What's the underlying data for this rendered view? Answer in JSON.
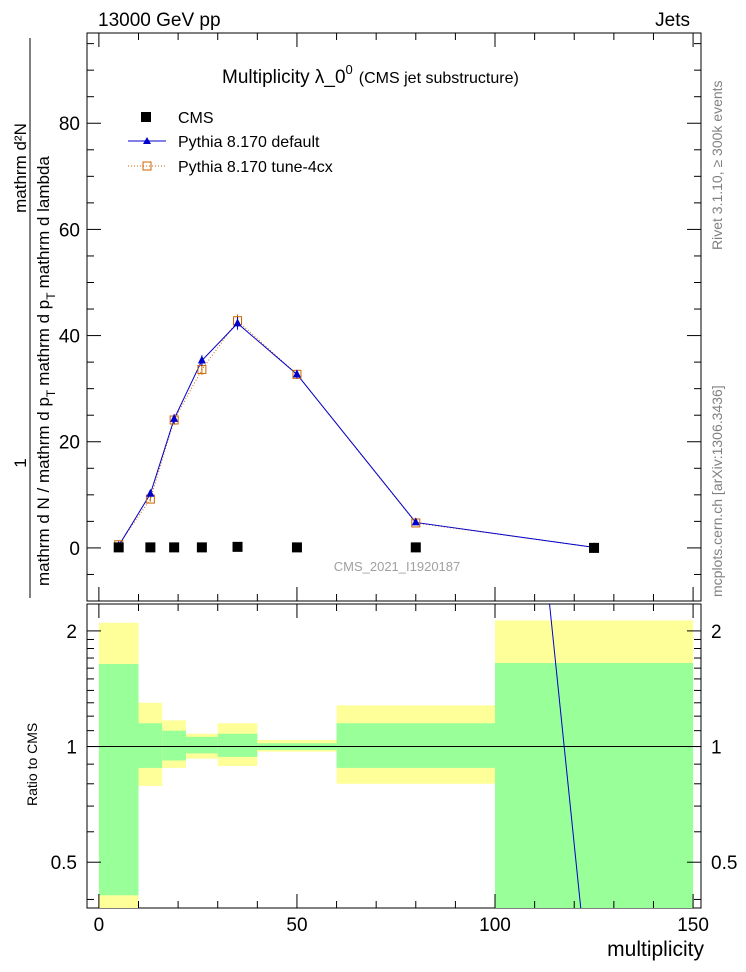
{
  "header": {
    "left": "13000 GeV pp",
    "right": "Jets"
  },
  "title": {
    "main": "Multiplicity  λ_0",
    "sup": "0",
    "sub": "(CMS jet substructure)"
  },
  "side_labels": {
    "rivet": "Rivet 3.1.10, ≥ 300k events",
    "mcplots": "mcplots.cern.ch [arXiv:1306.3436]"
  },
  "watermark": "CMS_2021_I1920187",
  "ylabel_main": {
    "numerator": "1",
    "denominator": "mathrm d N / mathrm d p",
    "denominator_sub": "T",
    "numerator_right": "mathrm d²N",
    "denominator_right": "mathrm d p",
    "denominator_right_sub": "T",
    "denominator_right_tail": "mathrm d lambda"
  },
  "ylabel_ratio": "Ratio to CMS",
  "xlabel": "multiplicity",
  "colors": {
    "cms": "#000000",
    "default": "#0000cc",
    "tune": "#cc6600",
    "band_outer": "#ffff99",
    "band_inner": "#99ff99"
  },
  "chart_data": [
    {
      "type": "scatter",
      "xlim": [
        -3,
        152
      ],
      "ylim": [
        -10,
        97
      ],
      "yticks": [
        0,
        20,
        40,
        60,
        80
      ],
      "xticks": [
        0,
        50,
        100,
        150
      ],
      "legend_position": "top-left",
      "series": [
        {
          "name": "CMS",
          "marker": "square",
          "x": [
            5,
            13,
            19,
            26,
            35,
            50,
            80,
            125
          ],
          "y": [
            0.1,
            0.1,
            0.1,
            0.1,
            0.2,
            0.1,
            0.1,
            0.0
          ]
        },
        {
          "name": "Pythia 8.170 default",
          "marker": "triangle",
          "x": [
            5,
            13,
            19,
            26,
            35,
            50,
            80,
            125
          ],
          "y": [
            0.4,
            10.2,
            24.3,
            35.3,
            42.3,
            32.7,
            4.8,
            0.1
          ],
          "err": [
            0.3,
            0.5,
            0.9,
            1.0,
            1.2,
            0.8,
            0.3,
            0.1
          ]
        },
        {
          "name": "Pythia 8.170 tune-4cx",
          "marker": "open-square",
          "x": [
            5,
            13,
            19,
            26,
            35,
            50,
            80,
            125
          ],
          "y": [
            0.6,
            9.2,
            24.1,
            33.6,
            42.8,
            32.7,
            4.7,
            0.1
          ],
          "err": [
            0.3,
            0.5,
            0.9,
            1.0,
            1.2,
            0.8,
            0.3,
            0.1
          ]
        }
      ]
    },
    {
      "type": "area",
      "scale": "log",
      "xlim": [
        -3,
        152
      ],
      "ylim": [
        0.38,
        2.35
      ],
      "yticks": [
        0.5,
        1,
        2
      ],
      "ytick_labels": [
        "0.5",
        "1",
        "2"
      ],
      "xticks": [
        0,
        50,
        100,
        150
      ],
      "bins": [
        {
          "x": [
            0,
            10
          ],
          "outer": [
            0.36,
            2.1
          ],
          "inner": [
            0.41,
            1.64
          ]
        },
        {
          "x": [
            10,
            16
          ],
          "outer": [
            0.79,
            1.3
          ],
          "inner": [
            0.88,
            1.15
          ]
        },
        {
          "x": [
            16,
            22
          ],
          "outer": [
            0.88,
            1.17
          ],
          "inner": [
            0.92,
            1.1
          ]
        },
        {
          "x": [
            22,
            30
          ],
          "outer": [
            0.93,
            1.08
          ],
          "inner": [
            0.96,
            1.06
          ]
        },
        {
          "x": [
            30,
            40
          ],
          "outer": [
            0.89,
            1.15
          ],
          "inner": [
            0.94,
            1.08
          ]
        },
        {
          "x": [
            40,
            60
          ],
          "outer": [
            0.97,
            1.04
          ],
          "inner": [
            0.98,
            1.02
          ]
        },
        {
          "x": [
            60,
            100
          ],
          "outer": [
            0.8,
            1.28
          ],
          "inner": [
            0.88,
            1.15
          ]
        },
        {
          "x": [
            100,
            150
          ],
          "outer": [
            0.36,
            2.13
          ],
          "inner": [
            0.36,
            1.65
          ]
        }
      ],
      "ratio_line": {
        "name": "Pythia 8.170 default",
        "x": [
          113.5,
          122
        ],
        "y": [
          2.5,
          0.35
        ]
      }
    }
  ]
}
